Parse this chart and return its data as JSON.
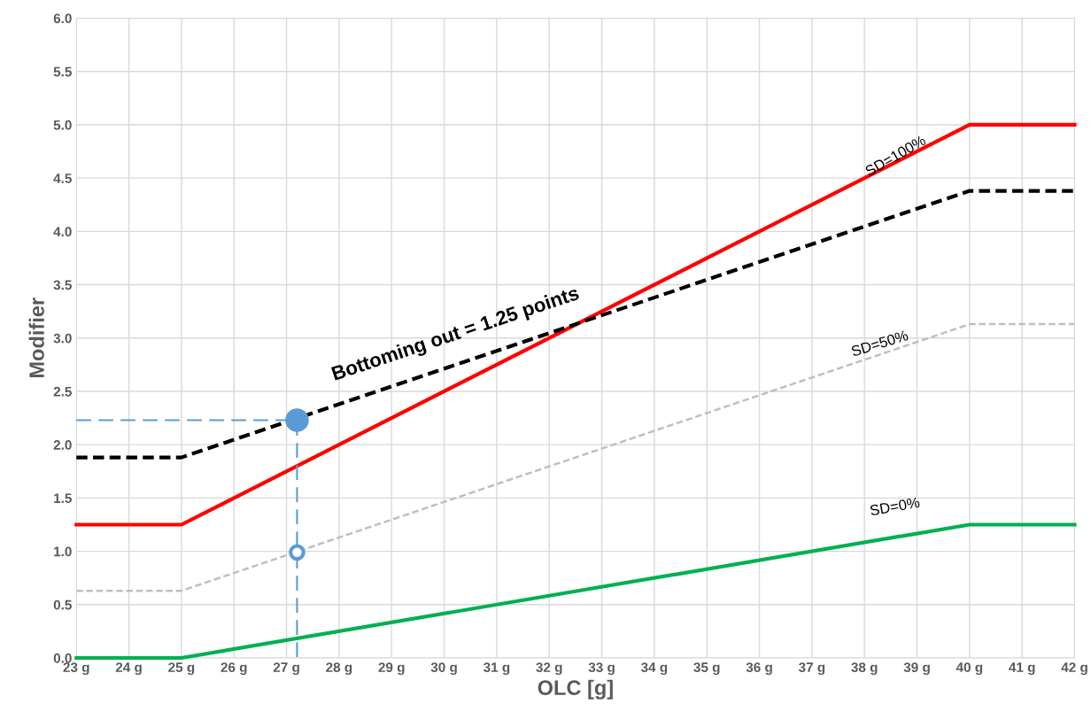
{
  "chart_data": {
    "type": "line",
    "xlabel": "OLC [g]",
    "ylabel": "Modifier",
    "series": [
      {
        "color": "#ff0000",
        "x": [
          23,
          25,
          40,
          42
        ],
        "values": [
          1.25,
          1.25,
          5.0,
          5.0
        ],
        "line_style": "solid"
      },
      {
        "color": "#000000",
        "x": [
          23,
          25,
          40,
          42
        ],
        "values": [
          1.88,
          1.88,
          4.38,
          4.38
        ],
        "line_style": "dashed"
      },
      {
        "color": "#bfbfbf",
        "x": [
          23,
          25,
          40,
          42
        ],
        "values": [
          0.63,
          0.63,
          3.13,
          3.13
        ],
        "line_style": "dashed"
      },
      {
        "color": "#00b050",
        "x": [
          23,
          25,
          40,
          42
        ],
        "values": [
          0,
          0,
          1.25,
          1.25
        ],
        "line_style": "solid"
      },
      {
        "color": "#5b9bd5",
        "x": [
          23,
          27.2,
          27.2
        ],
        "values": [
          2.23,
          2.23,
          0
        ],
        "line_style": "dashed"
      },
      {
        "type": "scatter",
        "color": "#5b9bd5",
        "x": [
          27.2
        ],
        "values": [
          2.23
        ],
        "marker": "circle"
      },
      {
        "type": "scatter",
        "color": "#5b9bd5",
        "x": [
          27.2
        ],
        "values": [
          0.99
        ],
        "marker": "circle"
      }
    ],
    "annotations": [
      {
        "text": "SD=100%",
        "x": 38.6,
        "y": 4.7
      },
      "SD=50%",
      "SD=0%",
      "Bottoming out = 1.25 points"
    ],
    "xlim": [
      23,
      42
    ],
    "xticks": [
      {
        "value": 23,
        "label": "23 g"
      },
      {
        "value": 24,
        "label": "24 g"
      },
      {
        "value": 25,
        "label": "25 g"
      },
      {
        "value": 26,
        "label": "26 g"
      },
      {
        "value": 27,
        "label": "27 g"
      },
      {
        "value": 28,
        "label": "28 g"
      },
      {
        "value": 29,
        "label": "29 g"
      },
      {
        "value": 30,
        "label": "30 g"
      },
      {
        "value": 31,
        "label": "31 g"
      },
      {
        "value": 32,
        "label": "32 g"
      },
      {
        "value": 33,
        "label": "33 g"
      },
      {
        "value": 34,
        "label": "34 g"
      },
      {
        "value": 35,
        "label": "35 g"
      },
      {
        "value": 36,
        "label": "36 g"
      },
      {
        "value": 37,
        "label": "37 g"
      },
      {
        "value": 38,
        "label": "38 g"
      },
      {
        "value": 39,
        "label": "39 g"
      },
      {
        "value": 40,
        "label": "40 g"
      },
      {
        "value": 41,
        "label": "41 g"
      },
      {
        "value": 42,
        "label": "42 g"
      }
    ],
    "ylim": [
      0,
      6
    ],
    "yticks": [
      {
        "value": 0,
        "label": "0.0"
      },
      {
        "value": 0.5,
        "label": "0.5"
      },
      {
        "value": 1,
        "label": "1.0"
      },
      {
        "value": 1.5,
        "label": "1.5"
      },
      {
        "value": 2,
        "label": "2.0"
      },
      {
        "value": 2.5,
        "label": "2.5"
      },
      {
        "value": 3,
        "label": "3.0"
      },
      {
        "value": 3.5,
        "label": "3.5"
      },
      {
        "value": 4,
        "label": "4.0"
      },
      {
        "value": 4.5,
        "label": "4.5"
      },
      {
        "value": 5,
        "label": "5.0"
      },
      {
        "value": 5.5,
        "label": "5.5"
      },
      {
        "value": 6,
        "label": "6.0"
      }
    ],
    "grid": true,
    "legend": false
  }
}
